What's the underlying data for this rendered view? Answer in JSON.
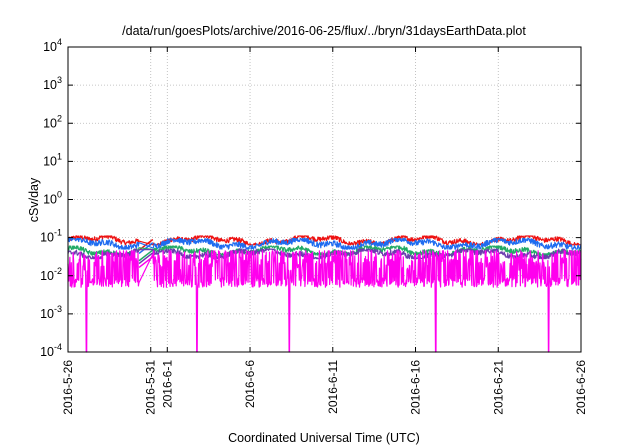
{
  "chart_data": {
    "type": "line",
    "title": "/data/run/goesPlots/archive/2016-06-25/flux/../bryn/31daysEarthData.plot",
    "xlabel": "Coordinated Universal Time (UTC)",
    "ylabel": "cSv/day",
    "xlim": [
      "2016-05-26",
      "2016-06-26"
    ],
    "ylim": [
      0.0001,
      10000
    ],
    "yscale": "log",
    "grid": true,
    "legend": "none",
    "x_ticks": [
      "2016-5-26",
      "2016-5-31",
      "2016-6-1",
      "2016-6-6",
      "2016-6-11",
      "2016-6-16",
      "2016-6-21",
      "2016-6-26"
    ],
    "x_tick_dates": [
      "2016-05-26",
      "2016-05-31",
      "2016-06-01",
      "2016-06-06",
      "2016-06-11",
      "2016-06-16",
      "2016-06-21",
      "2016-06-26"
    ],
    "y_ticks": [
      {
        "base": "10",
        "exp": "-4",
        "value": 0.0001
      },
      {
        "base": "10",
        "exp": "-3",
        "value": 0.001
      },
      {
        "base": "10",
        "exp": "-2",
        "value": 0.01
      },
      {
        "base": "10",
        "exp": "-1",
        "value": 0.1
      },
      {
        "base": "10",
        "exp": "0",
        "value": 1
      },
      {
        "base": "10",
        "exp": "1",
        "value": 10
      },
      {
        "base": "10",
        "exp": "2",
        "value": 100
      },
      {
        "base": "10",
        "exp": "3",
        "value": 1000
      },
      {
        "base": "10",
        "exp": "4",
        "value": 10000
      }
    ],
    "data_gap": [
      "2016-05-30T07:00",
      "2016-05-31T03:00"
    ],
    "dropouts": [
      "2016-05-27T03:00",
      "2016-06-02T19:00",
      "2016-06-08T09:00",
      "2016-06-17T05:00",
      "2016-06-24T01:00"
    ],
    "series": [
      {
        "color": "#ee1111",
        "typical": 0.085,
        "low": 0.065,
        "high": 0.11
      },
      {
        "color": "#1e6cf0",
        "typical": 0.07,
        "low": 0.05,
        "high": 0.095
      },
      {
        "color": "#22aa66",
        "typical": 0.045,
        "low": 0.035,
        "high": 0.06
      },
      {
        "color": "#6a3dae",
        "typical": 0.038,
        "low": 0.028,
        "high": 0.05
      },
      {
        "color": "#ff00ee",
        "typical": 0.03,
        "low": 0.005,
        "high": 0.045
      }
    ]
  }
}
